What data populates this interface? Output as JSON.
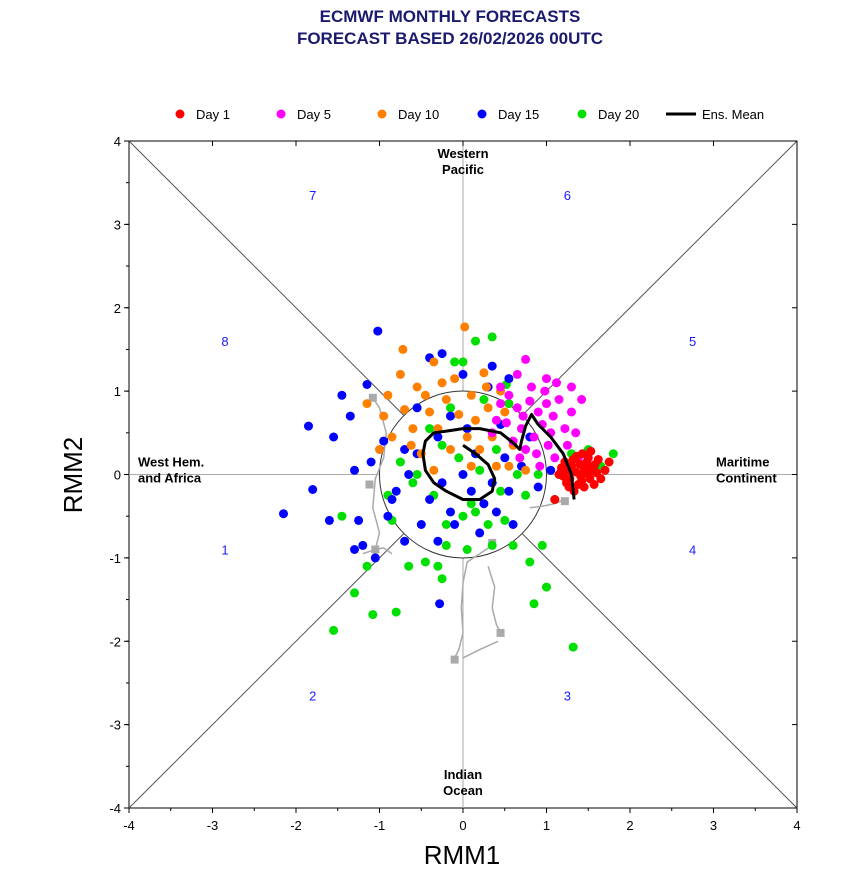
{
  "chart_data": {
    "type": "scatter",
    "title_lines": [
      "ECMWF MONTHLY FORECASTS",
      "FORECAST  BASED 26/02/2026 00UTC"
    ],
    "xlabel": "RMM1",
    "ylabel": "RMM2",
    "xlim": [
      -4,
      4
    ],
    "ylim": [
      -4,
      4
    ],
    "xticks": [
      "-4",
      "-3",
      "-2",
      "-1",
      "0",
      "1",
      "2",
      "3",
      "4"
    ],
    "yticks": [
      "-4",
      "-3",
      "-2",
      "-1",
      "0",
      "1",
      "2",
      "3",
      "4"
    ],
    "regions": [
      {
        "lines": [
          "Western",
          "Pacific"
        ],
        "x": 0,
        "y": 3.75
      },
      {
        "lines": [
          "Indian",
          "Ocean"
        ],
        "x": 0,
        "y": -3.75
      },
      {
        "lines": [
          "West Hem.",
          "and Africa"
        ],
        "x": -3.6,
        "y": 0
      },
      {
        "lines": [
          "Maritime",
          "Continent"
        ],
        "x": 3.5,
        "y": 0
      }
    ],
    "phases": [
      {
        "label": "1",
        "x": -2.85,
        "y": -0.9
      },
      {
        "label": "2",
        "x": -1.8,
        "y": -2.65
      },
      {
        "label": "3",
        "x": 1.25,
        "y": -2.65
      },
      {
        "label": "4",
        "x": 2.75,
        "y": -0.9
      },
      {
        "label": "5",
        "x": 2.75,
        "y": 1.6
      },
      {
        "label": "6",
        "x": 1.25,
        "y": 3.35
      },
      {
        "label": "7",
        "x": -1.8,
        "y": 3.35
      },
      {
        "label": "8",
        "x": -2.85,
        "y": 1.6
      }
    ],
    "legend": [
      {
        "label": "Day 1",
        "color": "#ff0000",
        "kind": "dot"
      },
      {
        "label": "Day 5",
        "color": "#ff00ff",
        "kind": "dot"
      },
      {
        "label": "Day 10",
        "color": "#ff7f00",
        "kind": "dot"
      },
      {
        "label": "Day 15",
        "color": "#0000ff",
        "kind": "dot"
      },
      {
        "label": "Day 20",
        "color": "#00e000",
        "kind": "dot"
      },
      {
        "label": "Ens. Mean",
        "color": "#000000",
        "kind": "line"
      }
    ],
    "series": [
      {
        "name": "Day 1",
        "color": "#ff0000",
        "points": [
          [
            1.2,
            -0.02
          ],
          [
            1.25,
            0.05
          ],
          [
            1.3,
            0.1
          ],
          [
            1.28,
            -0.05
          ],
          [
            1.35,
            0.03
          ],
          [
            1.4,
            0.12
          ],
          [
            1.42,
            -0.08
          ],
          [
            1.45,
            0.05
          ],
          [
            1.5,
            0.0
          ],
          [
            1.48,
            0.15
          ],
          [
            1.38,
            -0.12
          ],
          [
            1.32,
            0.18
          ],
          [
            1.55,
            0.08
          ],
          [
            1.52,
            -0.05
          ],
          [
            1.6,
            0.02
          ],
          [
            1.58,
            0.12
          ],
          [
            1.22,
            0.15
          ],
          [
            1.18,
            0.08
          ],
          [
            1.27,
            -0.15
          ],
          [
            1.45,
            -0.15
          ],
          [
            1.36,
            0.22
          ],
          [
            1.5,
            0.2
          ],
          [
            1.65,
            -0.05
          ],
          [
            1.7,
            0.05
          ],
          [
            1.43,
            0.25
          ],
          [
            1.33,
            -0.2
          ],
          [
            1.24,
            -0.1
          ],
          [
            1.57,
            -0.12
          ],
          [
            1.62,
            0.18
          ],
          [
            1.47,
            0.08
          ],
          [
            1.15,
            0.0
          ],
          [
            1.1,
            -0.3
          ],
          [
            1.75,
            0.15
          ],
          [
            1.41,
            -0.02
          ],
          [
            1.53,
            0.28
          ]
        ]
      },
      {
        "name": "Day 5",
        "color": "#ff00ff",
        "points": [
          [
            0.45,
            0.85
          ],
          [
            0.55,
            0.95
          ],
          [
            0.65,
            0.8
          ],
          [
            0.72,
            0.7
          ],
          [
            0.8,
            0.88
          ],
          [
            0.9,
            0.75
          ],
          [
            0.95,
            0.6
          ],
          [
            1.0,
            0.85
          ],
          [
            1.08,
            0.7
          ],
          [
            1.15,
            0.9
          ],
          [
            1.22,
            0.55
          ],
          [
            1.3,
            0.75
          ],
          [
            0.85,
            0.45
          ],
          [
            0.75,
            0.3
          ],
          [
            0.7,
            0.55
          ],
          [
            0.6,
            0.4
          ],
          [
            0.68,
            0.2
          ],
          [
            0.88,
            0.25
          ],
          [
            1.02,
            0.35
          ],
          [
            1.1,
            0.2
          ],
          [
            1.25,
            0.35
          ],
          [
            1.35,
            0.5
          ],
          [
            1.38,
            0.2
          ],
          [
            0.98,
            1.0
          ],
          [
            1.12,
            1.1
          ],
          [
            1.0,
            1.15
          ],
          [
            0.4,
            0.65
          ],
          [
            0.35,
            0.5
          ],
          [
            0.52,
            0.62
          ],
          [
            0.82,
            1.05
          ],
          [
            0.65,
            1.2
          ],
          [
            0.45,
            1.05
          ],
          [
            1.42,
            0.9
          ],
          [
            1.3,
            1.05
          ],
          [
            0.92,
            0.1
          ],
          [
            1.18,
            0.05
          ],
          [
            0.75,
            1.38
          ],
          [
            1.05,
            0.5
          ]
        ]
      },
      {
        "name": "Day 10",
        "color": "#ff7f00",
        "points": [
          [
            0.02,
            1.77
          ],
          [
            -0.72,
            1.5
          ],
          [
            -0.35,
            1.35
          ],
          [
            -0.1,
            1.15
          ],
          [
            0.25,
            1.22
          ],
          [
            -0.55,
            1.05
          ],
          [
            -0.9,
            0.95
          ],
          [
            -0.2,
            0.9
          ],
          [
            0.1,
            0.95
          ],
          [
            0.3,
            0.8
          ],
          [
            0.5,
            0.75
          ],
          [
            -0.4,
            0.75
          ],
          [
            -0.7,
            0.78
          ],
          [
            -0.95,
            0.7
          ],
          [
            0.15,
            0.65
          ],
          [
            0.05,
            0.45
          ],
          [
            -0.3,
            0.55
          ],
          [
            -0.6,
            0.55
          ],
          [
            -0.85,
            0.45
          ],
          [
            0.35,
            0.45
          ],
          [
            0.6,
            0.35
          ],
          [
            0.2,
            0.3
          ],
          [
            -0.15,
            0.3
          ],
          [
            -1.0,
            0.3
          ],
          [
            -0.5,
            0.25
          ],
          [
            0.4,
            0.1
          ],
          [
            0.1,
            0.1
          ],
          [
            -0.35,
            0.05
          ],
          [
            -0.75,
            1.2
          ],
          [
            -0.25,
            1.1
          ],
          [
            0.45,
            1.0
          ],
          [
            -1.15,
            0.85
          ],
          [
            0.55,
            0.1
          ],
          [
            0.75,
            0.05
          ],
          [
            -0.05,
            0.72
          ],
          [
            -0.62,
            0.35
          ],
          [
            0.28,
            1.05
          ],
          [
            -0.45,
            0.95
          ]
        ]
      },
      {
        "name": "Day 15",
        "color": "#0000ff",
        "points": [
          [
            -1.02,
            1.72
          ],
          [
            -1.85,
            0.58
          ],
          [
            -2.15,
            -0.47
          ],
          [
            -1.8,
            -0.18
          ],
          [
            -1.55,
            0.45
          ],
          [
            -1.35,
            0.7
          ],
          [
            -1.15,
            1.08
          ],
          [
            -1.3,
            0.05
          ],
          [
            -1.25,
            -0.55
          ],
          [
            -1.6,
            -0.55
          ],
          [
            -1.3,
            -0.9
          ],
          [
            -1.2,
            -0.85
          ],
          [
            -1.05,
            -1.0
          ],
          [
            -0.9,
            -0.5
          ],
          [
            -0.8,
            -0.2
          ],
          [
            -0.65,
            0.0
          ],
          [
            -0.4,
            -0.3
          ],
          [
            -0.25,
            -0.1
          ],
          [
            -0.55,
            0.25
          ],
          [
            -0.3,
            0.45
          ],
          [
            0.0,
            0.0
          ],
          [
            0.1,
            -0.2
          ],
          [
            0.25,
            -0.35
          ],
          [
            0.4,
            -0.45
          ],
          [
            0.55,
            -0.2
          ],
          [
            0.7,
            0.1
          ],
          [
            0.5,
            0.2
          ],
          [
            -0.15,
            0.7
          ],
          [
            -0.4,
            1.4
          ],
          [
            -0.25,
            1.45
          ],
          [
            0.0,
            1.2
          ],
          [
            0.35,
            1.3
          ],
          [
            0.3,
            1.05
          ],
          [
            0.55,
            1.15
          ],
          [
            -0.7,
            -0.8
          ],
          [
            -0.5,
            -0.6
          ],
          [
            -0.3,
            -0.8
          ],
          [
            -0.28,
            -1.55
          ],
          [
            -0.1,
            -0.6
          ],
          [
            0.2,
            -0.7
          ],
          [
            0.9,
            -0.15
          ],
          [
            1.05,
            0.05
          ],
          [
            0.6,
            -0.6
          ],
          [
            -0.95,
            0.4
          ],
          [
            -1.1,
            0.15
          ],
          [
            -1.45,
            0.95
          ],
          [
            -0.55,
            0.8
          ],
          [
            0.15,
            0.25
          ],
          [
            -0.15,
            -0.45
          ],
          [
            0.35,
            -0.1
          ],
          [
            0.8,
            0.45
          ],
          [
            -0.7,
            0.3
          ],
          [
            0.05,
            0.55
          ],
          [
            -0.85,
            -0.3
          ],
          [
            0.45,
            0.6
          ]
        ]
      },
      {
        "name": "Day 20",
        "color": "#00e000",
        "points": [
          [
            -1.55,
            -1.87
          ],
          [
            -1.3,
            -1.42
          ],
          [
            -1.08,
            -1.68
          ],
          [
            -0.8,
            -1.65
          ],
          [
            -1.15,
            -1.1
          ],
          [
            -1.45,
            -0.5
          ],
          [
            -0.9,
            -0.25
          ],
          [
            -0.75,
            0.15
          ],
          [
            -0.6,
            -0.1
          ],
          [
            -0.35,
            -0.25
          ],
          [
            -0.2,
            -0.85
          ],
          [
            -0.3,
            -1.1
          ],
          [
            -0.45,
            -1.05
          ],
          [
            -0.25,
            -1.25
          ],
          [
            0.0,
            -0.5
          ],
          [
            0.15,
            -0.45
          ],
          [
            0.3,
            -0.6
          ],
          [
            0.5,
            -0.55
          ],
          [
            0.6,
            -0.85
          ],
          [
            0.8,
            -1.05
          ],
          [
            0.95,
            -0.85
          ],
          [
            1.0,
            -1.35
          ],
          [
            0.85,
            -1.55
          ],
          [
            1.32,
            -2.07
          ],
          [
            0.65,
            0.0
          ],
          [
            0.45,
            -0.2
          ],
          [
            0.2,
            0.05
          ],
          [
            -0.05,
            0.2
          ],
          [
            -0.25,
            0.35
          ],
          [
            -0.1,
            1.35
          ],
          [
            0.0,
            1.35
          ],
          [
            0.15,
            1.6
          ],
          [
            0.35,
            1.65
          ],
          [
            0.52,
            1.08
          ],
          [
            1.3,
            0.25
          ],
          [
            1.5,
            0.3
          ],
          [
            1.8,
            0.25
          ],
          [
            1.65,
            0.1
          ],
          [
            0.55,
            0.85
          ],
          [
            -0.55,
            0.0
          ],
          [
            0.35,
            -0.85
          ],
          [
            0.1,
            -0.35
          ],
          [
            -0.15,
            0.8
          ],
          [
            1.1,
            -0.3
          ],
          [
            0.75,
            -0.25
          ],
          [
            -0.85,
            -0.55
          ],
          [
            -0.65,
            -1.1
          ],
          [
            0.05,
            -0.9
          ],
          [
            0.25,
            0.9
          ],
          [
            -0.4,
            0.55
          ],
          [
            0.9,
            0.0
          ],
          [
            0.4,
            0.3
          ],
          [
            -0.2,
            -0.6
          ]
        ]
      }
    ],
    "ens_mean": [
      [
        1.33,
        -0.3
      ],
      [
        1.3,
        0.0
      ],
      [
        1.2,
        0.25
      ],
      [
        1.05,
        0.45
      ],
      [
        0.9,
        0.6
      ],
      [
        0.82,
        0.72
      ],
      [
        0.75,
        0.58
      ],
      [
        0.7,
        0.4
      ],
      [
        0.68,
        0.3
      ],
      [
        0.6,
        0.38
      ],
      [
        0.45,
        0.5
      ],
      [
        0.2,
        0.55
      ],
      [
        0.0,
        0.55
      ],
      [
        -0.2,
        0.52
      ],
      [
        -0.35,
        0.5
      ],
      [
        -0.45,
        0.4
      ],
      [
        -0.48,
        0.25
      ],
      [
        -0.45,
        0.05
      ],
      [
        -0.35,
        -0.1
      ],
      [
        -0.2,
        -0.2
      ],
      [
        0.0,
        -0.3
      ],
      [
        0.2,
        -0.3
      ],
      [
        0.35,
        -0.2
      ],
      [
        0.38,
        -0.05
      ],
      [
        0.3,
        0.12
      ],
      [
        0.15,
        0.25
      ],
      [
        0.0,
        0.35
      ]
    ],
    "spread_lines": [
      [
        [
          -1.1,
          0.95
        ],
        [
          -1.0,
          0.8
        ],
        [
          -0.92,
          0.5
        ],
        [
          -0.95,
          0.2
        ],
        [
          -1.05,
          -0.05
        ],
        [
          -1.08,
          -0.4
        ],
        [
          -1.0,
          -0.7
        ],
        [
          -1.05,
          -0.9
        ],
        [
          -1.2,
          -0.95
        ]
      ],
      [
        [
          -1.05,
          -0.9
        ],
        [
          -0.95,
          -0.88
        ],
        [
          -0.85,
          -0.95
        ]
      ],
      [
        [
          0.35,
          -0.85
        ],
        [
          0.2,
          -0.95
        ],
        [
          0.05,
          -1.05
        ],
        [
          0.0,
          -1.3
        ],
        [
          -0.02,
          -1.6
        ],
        [
          0.0,
          -1.9
        ],
        [
          -0.05,
          -2.1
        ],
        [
          -0.1,
          -2.2
        ]
      ],
      [
        [
          0.0,
          -2.2
        ],
        [
          0.2,
          -2.1
        ],
        [
          0.42,
          -2.0
        ]
      ],
      [
        [
          0.45,
          -1.9
        ],
        [
          0.4,
          -1.8
        ],
        [
          0.35,
          -1.6
        ],
        [
          0.38,
          -1.35
        ],
        [
          0.3,
          -1.1
        ]
      ],
      [
        [
          0.8,
          -0.4
        ],
        [
          0.95,
          -0.38
        ],
        [
          1.1,
          -0.35
        ],
        [
          1.22,
          -0.3
        ]
      ]
    ],
    "spread_markers": [
      [
        -1.08,
        0.92
      ],
      [
        -1.12,
        -0.12
      ],
      [
        -1.05,
        -0.9
      ],
      [
        0.35,
        -0.82
      ],
      [
        -0.1,
        -2.22
      ],
      [
        0.45,
        -1.9
      ],
      [
        1.22,
        -0.32
      ]
    ]
  }
}
